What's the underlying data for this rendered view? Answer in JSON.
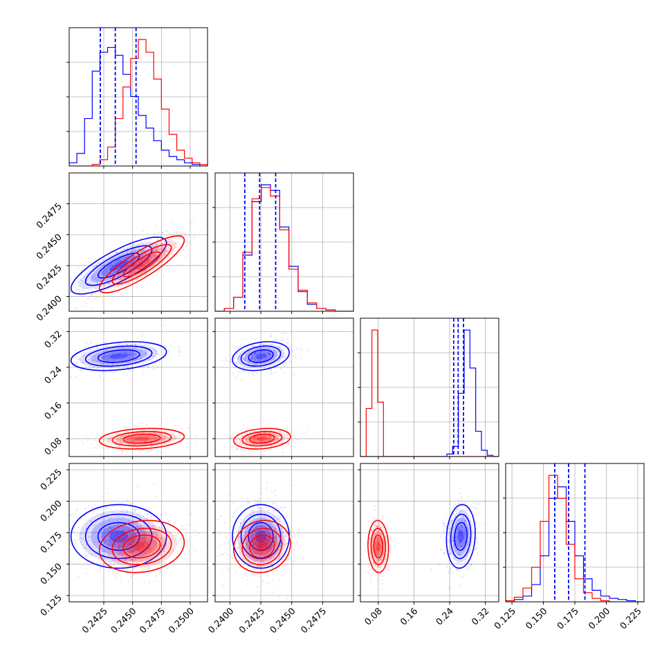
{
  "chart_data": {
    "type": "corner",
    "grid": true,
    "parameters": [
      {
        "range": [
          0.2395,
          0.2515
        ],
        "ticks": [
          "0.2425",
          "0.2450",
          "0.2475",
          "0.2500"
        ],
        "tick_values": [
          0.2425,
          0.245,
          0.2475,
          0.25
        ]
      },
      {
        "range": [
          0.2388,
          0.25
        ],
        "ticks": [
          "0.2400",
          "0.2425",
          "0.2450",
          "0.2475"
        ],
        "tick_values": [
          0.24,
          0.2425,
          0.245,
          0.2475
        ]
      },
      {
        "range": [
          0.04,
          0.35
        ],
        "ticks": [
          "0.08",
          "0.16",
          "0.24",
          "0.32"
        ],
        "tick_values": [
          0.08,
          0.16,
          0.24,
          0.32
        ]
      },
      {
        "range": [
          0.12,
          0.23
        ],
        "ticks": [
          "0.125",
          "0.150",
          "0.175",
          "0.200",
          "0.225"
        ],
        "tick_values": [
          0.125,
          0.15,
          0.175,
          0.2,
          0.225
        ]
      }
    ],
    "series": [
      {
        "color": "#0000ff",
        "means": [
          0.2438,
          0.2425,
          0.265,
          0.172
        ],
        "sigmas": [
          0.0018,
          0.001,
          0.014,
          0.011
        ],
        "quantiles": [
          [
            0.2422,
            0.2435,
            0.2453
          ],
          [
            0.2412,
            0.2424,
            0.2437
          ],
          [
            0.249,
            0.259,
            0.271
          ],
          [
            0.159,
            0.17,
            0.183
          ]
        ],
        "corr": [
          [
            1,
            0.8,
            0.3,
            0
          ],
          [
            0.8,
            1,
            0.25,
            0
          ],
          [
            0.3,
            0.25,
            1,
            0.1
          ],
          [
            0,
            0,
            0.1,
            1
          ]
        ]
      },
      {
        "color": "#ff0000",
        "means": [
          0.2458,
          0.2426,
          0.08,
          0.164
        ],
        "sigmas": [
          0.0016,
          0.001,
          0.01,
          0.009
        ],
        "corr": [
          [
            1,
            0.85,
            0.2,
            0.15
          ],
          [
            0.85,
            1,
            0.2,
            0.1
          ],
          [
            0.2,
            0.2,
            1,
            -0.05
          ],
          [
            0.15,
            0.1,
            -0.05,
            1
          ]
        ]
      }
    ],
    "histograms": [
      {
        "blue": [
          2,
          8,
          30,
          60,
          72,
          75,
          70,
          58,
          44,
          32,
          24,
          16,
          10,
          6,
          4,
          2,
          1,
          0
        ],
        "red": [
          0,
          0,
          0,
          1,
          4,
          12,
          30,
          50,
          68,
          80,
          72,
          55,
          36,
          20,
          10,
          5,
          2,
          1
        ]
      },
      {
        "blue": [
          0,
          2,
          10,
          40,
          78,
          90,
          86,
          60,
          32,
          14,
          5,
          2,
          1,
          0,
          0
        ],
        "red": [
          0,
          2,
          10,
          42,
          80,
          88,
          82,
          58,
          30,
          15,
          6,
          2,
          1,
          0,
          0
        ]
      },
      {
        "blue": [
          0,
          0,
          0,
          0,
          0,
          0,
          0,
          0,
          0,
          0,
          0,
          0,
          0,
          0,
          0,
          2,
          8,
          50,
          100,
          70,
          20,
          5,
          1,
          0
        ],
        "red": [
          0,
          38,
          100,
          43,
          0,
          0,
          0,
          0,
          0,
          0,
          0,
          0,
          0,
          0,
          0,
          0,
          0,
          0,
          0,
          0,
          0,
          0,
          0,
          0
        ]
      },
      {
        "blue": [
          0,
          2,
          5,
          15,
          40,
          90,
          100,
          70,
          40,
          20,
          10,
          5,
          3,
          2,
          1,
          0
        ],
        "red": [
          1,
          4,
          12,
          30,
          70,
          110,
          90,
          50,
          20,
          8,
          3,
          1,
          0,
          0,
          0,
          0
        ]
      }
    ]
  }
}
